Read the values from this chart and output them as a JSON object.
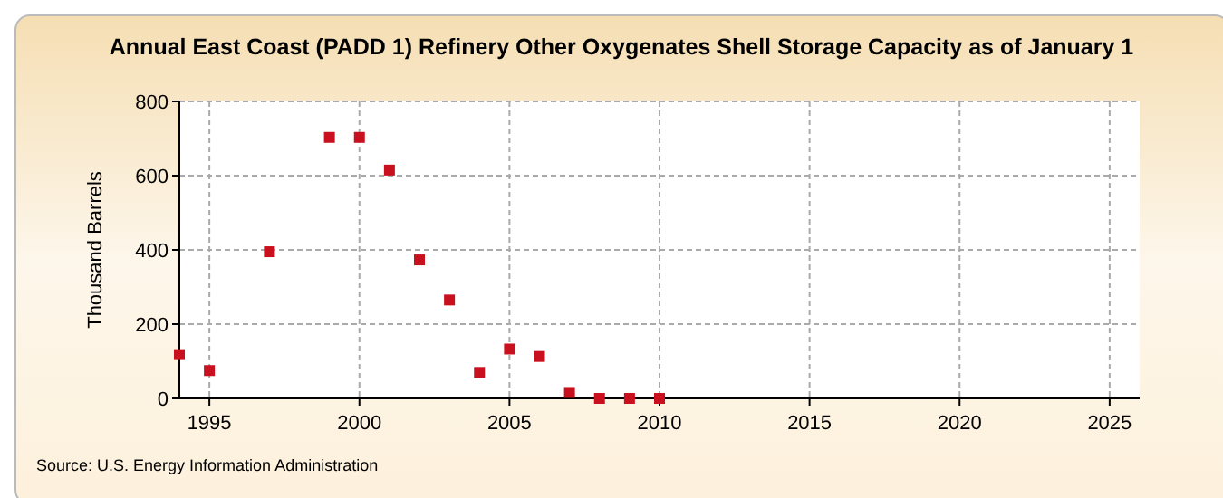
{
  "chart_data": {
    "type": "scatter",
    "title": "Annual East Coast (PADD 1) Refinery Other Oxygenates Shell Storage Capacity as of January 1",
    "ylabel": "Thousand Barrels",
    "x": [
      1994,
      1995,
      1997,
      1999,
      2000,
      2001,
      2002,
      2003,
      2004,
      2005,
      2006,
      2007,
      2008,
      2009,
      2010
    ],
    "series": [
      {
        "color": "#c8101e",
        "values": [
          118,
          75,
          395,
          703,
          703,
          615,
          373,
          265,
          70,
          133,
          113,
          16,
          0,
          0,
          0
        ]
      }
    ],
    "xlim": [
      1994,
      2026
    ],
    "xticks": [
      1995,
      2000,
      2005,
      2010,
      2015,
      2020,
      2025
    ],
    "ylim": [
      0,
      800
    ],
    "yticks": [
      0,
      200,
      400,
      600,
      800
    ],
    "grid": true,
    "marker": "square",
    "annotations": [
      "Source: U.S. Energy Information Administration"
    ]
  }
}
